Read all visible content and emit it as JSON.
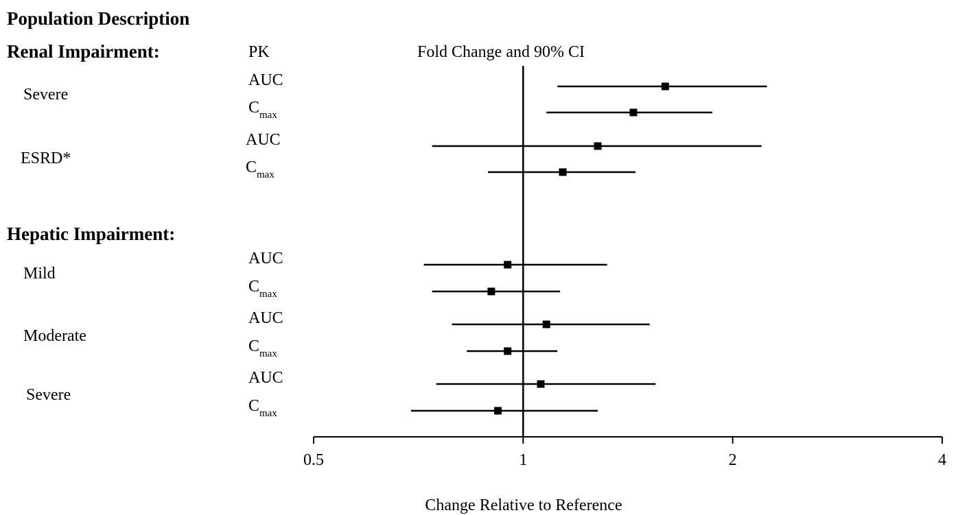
{
  "chart_data": {
    "type": "forest",
    "header": {
      "population_description": "Population Description",
      "pk": "PK",
      "fold_change": "Fold Change and 90% CI"
    },
    "xlabel": "Change Relative to Reference",
    "x_scale": "log2",
    "xlim": [
      0.5,
      4
    ],
    "ticks": [
      {
        "value": 0.5,
        "label": "0.5"
      },
      {
        "value": 1,
        "label": "1"
      },
      {
        "value": 2,
        "label": "2"
      },
      {
        "value": 4,
        "label": "4"
      }
    ],
    "reference_line": 1,
    "sections": [
      {
        "title": "Renal Impairment:",
        "groups": [
          {
            "name": "Severe",
            "rows": [
              {
                "pk": "AUC",
                "point": 1.6,
                "lo": 1.12,
                "hi": 2.24
              },
              {
                "pk": "C",
                "pk_sub": "max",
                "point": 1.44,
                "lo": 1.08,
                "hi": 1.87
              }
            ]
          },
          {
            "name": "ESRD*",
            "rows": [
              {
                "pk": "AUC",
                "point": 1.28,
                "lo": 0.74,
                "hi": 2.2
              },
              {
                "pk": "C",
                "pk_sub": "max",
                "point": 1.14,
                "lo": 0.89,
                "hi": 1.45
              }
            ]
          }
        ]
      },
      {
        "title": "Hepatic Impairment:",
        "groups": [
          {
            "name": "Mild",
            "rows": [
              {
                "pk": "AUC",
                "point": 0.95,
                "lo": 0.72,
                "hi": 1.32
              },
              {
                "pk": "C",
                "pk_sub": "max",
                "point": 0.9,
                "lo": 0.74,
                "hi": 1.13
              }
            ]
          },
          {
            "name": "Moderate",
            "rows": [
              {
                "pk": "AUC",
                "point": 1.08,
                "lo": 0.79,
                "hi": 1.52
              },
              {
                "pk": "C",
                "pk_sub": "max",
                "point": 0.95,
                "lo": 0.83,
                "hi": 1.12
              }
            ]
          },
          {
            "name": "Severe",
            "rows": [
              {
                "pk": "AUC",
                "point": 1.06,
                "lo": 0.75,
                "hi": 1.55
              },
              {
                "pk": "C",
                "pk_sub": "max",
                "point": 0.92,
                "lo": 0.69,
                "hi": 1.28
              }
            ]
          }
        ]
      }
    ]
  }
}
